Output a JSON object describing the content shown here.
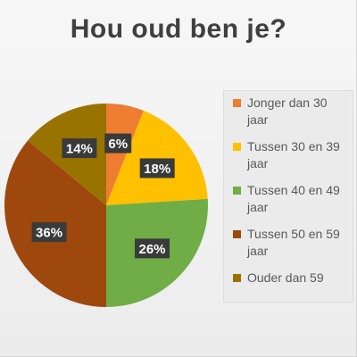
{
  "chart_data": {
    "type": "pie",
    "title": "Hou oud ben je?",
    "slices": [
      {
        "label": "Jonger dan 30 jaar",
        "value": 6,
        "display": "6%",
        "color": "#ed7d31"
      },
      {
        "label": "Tussen 30 en 39 jaar",
        "value": 18,
        "display": "18%",
        "color": "#ffc000"
      },
      {
        "label": "Tussen 40 en 49 jaar",
        "value": 26,
        "display": "26%",
        "color": "#70ad47"
      },
      {
        "label": "Tussen 50 en 59 jaar",
        "value": 36,
        "display": "36%",
        "color": "#9e480e"
      },
      {
        "label": "Ouder dan 59",
        "value": 14,
        "display": "14%",
        "color": "#997300"
      }
    ],
    "start_angle_deg": 0,
    "direction": "clockwise",
    "legend_position": "right",
    "data_label_style": "dark box with white bold text"
  }
}
